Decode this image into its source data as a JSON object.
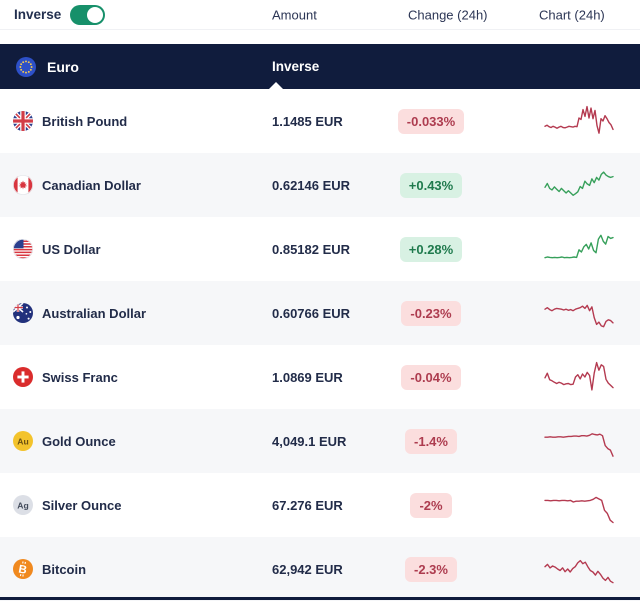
{
  "toolbar": {
    "inverse_label": "Inverse",
    "inverse_toggle_on": true,
    "columns": {
      "amount": "Amount",
      "change": "Change (24h)",
      "chart": "Chart (24h)"
    }
  },
  "section_header": {
    "currency": "Euro",
    "mode_label": "Inverse",
    "icon": "eu-flag-icon"
  },
  "colors": {
    "header_navy": "#101c3d",
    "toggle_green": "#17906a",
    "chart_up": "#37a05b",
    "chart_down": "#b43a50",
    "badge_up_bg": "#d8f1e3",
    "badge_up_text": "#1f7a4d",
    "badge_down_bg": "#fbdede",
    "badge_down_text": "#ad3c4f",
    "row_alt_bg": "#f6f7f9"
  },
  "rows": [
    {
      "name": "British Pound",
      "icon": "gb-flag-icon",
      "amount": "1.1485 EUR",
      "change": "-0.033%",
      "direction": "down",
      "chart": {
        "type": "line",
        "points": [
          36,
          39,
          35,
          33,
          36,
          34,
          31,
          34,
          36,
          33,
          32,
          34,
          36,
          35,
          34,
          36,
          35,
          58,
          54,
          80,
          62,
          88,
          58,
          84,
          56,
          78,
          38,
          18,
          56,
          50,
          64,
          56,
          46,
          40,
          28
        ]
      }
    },
    {
      "name": "Canadian Dollar",
      "icon": "ca-flag-icon",
      "amount": "0.62146 EUR",
      "change": "+0.43%",
      "direction": "up",
      "chart": {
        "type": "line",
        "points": [
          44,
          54,
          41,
          37,
          45,
          39,
          33,
          41,
          35,
          29,
          35,
          29,
          23,
          27,
          32,
          46,
          41,
          60,
          53,
          49,
          66,
          56,
          70,
          63,
          78,
          84,
          76,
          72,
          70,
          72
        ]
      }
    },
    {
      "name": "US Dollar",
      "icon": "us-flag-icon",
      "amount": "0.85182 EUR",
      "change": "+0.28%",
      "direction": "up",
      "chart": {
        "type": "line",
        "points": [
          27,
          29,
          28,
          27,
          28,
          27,
          28,
          29,
          27,
          28,
          27,
          28,
          29,
          28,
          48,
          42,
          56,
          62,
          50,
          66,
          46,
          40,
          76,
          86,
          70,
          63,
          83,
          78,
          80
        ]
      }
    },
    {
      "name": "Australian Dollar",
      "icon": "au-flag-icon",
      "amount": "0.60766 EUR",
      "change": "-0.23%",
      "direction": "down",
      "chart": {
        "type": "line",
        "points": [
          60,
          64,
          59,
          56,
          60,
          62,
          61,
          60,
          58,
          60,
          57,
          59,
          56,
          60,
          62,
          64,
          68,
          62,
          70,
          56,
          66,
          38,
          20,
          26,
          16,
          14,
          28,
          32,
          30,
          24
        ]
      }
    },
    {
      "name": "Swiss Franc",
      "icon": "ch-flag-icon",
      "amount": "1.0869 EUR",
      "change": "-0.04%",
      "direction": "down",
      "chart": {
        "type": "line",
        "points": [
          48,
          60,
          43,
          40,
          36,
          33,
          36,
          34,
          30,
          32,
          33,
          30,
          31,
          50,
          56,
          45,
          58,
          50,
          62,
          54,
          16,
          60,
          88,
          68,
          82,
          78,
          44,
          34,
          28,
          22
        ]
      }
    },
    {
      "name": "Gold Ounce",
      "icon": "gold-icon",
      "symbol": "Au",
      "amount": "4,049.1 EUR",
      "change": "-1.4%",
      "direction": "down",
      "chart": {
        "type": "line",
        "points": [
          60,
          60,
          61,
          60,
          60,
          61,
          61,
          60,
          61,
          62,
          62,
          63,
          63,
          62,
          64,
          64,
          63,
          65,
          69,
          67,
          66,
          68,
          64,
          38,
          30,
          26,
          10
        ]
      }
    },
    {
      "name": "Silver Ounce",
      "icon": "silver-icon",
      "symbol": "Ag",
      "amount": "67.276 EUR",
      "change": "-2%",
      "direction": "down",
      "chart": {
        "type": "line",
        "points": [
          62,
          62,
          61,
          62,
          62,
          61,
          62,
          62,
          61,
          62,
          58,
          60,
          60,
          61,
          60,
          61,
          62,
          65,
          70,
          66,
          62,
          36,
          28,
          10,
          4
        ]
      }
    },
    {
      "name": "Bitcoin",
      "icon": "bitcoin-icon",
      "symbol": "B",
      "amount": "62,942 EUR",
      "change": "-2.3%",
      "direction": "down",
      "chart": {
        "type": "line",
        "points": [
          56,
          62,
          53,
          58,
          55,
          50,
          46,
          53,
          43,
          50,
          42,
          51,
          56,
          66,
          72,
          64,
          68,
          56,
          46,
          42,
          34,
          44,
          36,
          26,
          20,
          28,
          18,
          14
        ]
      }
    }
  ]
}
